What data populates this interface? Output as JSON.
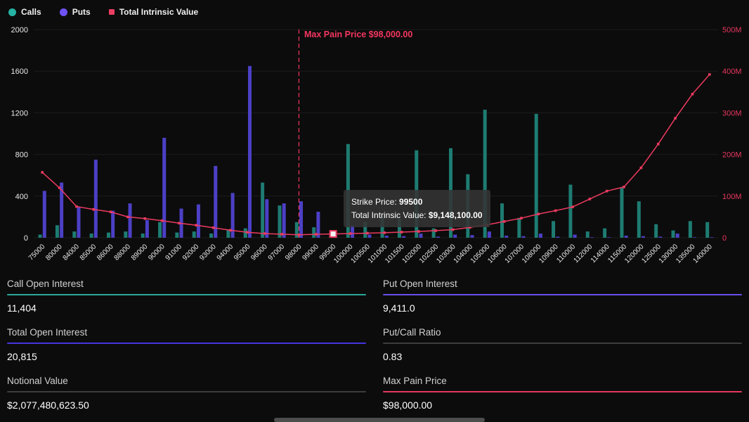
{
  "legend": {
    "items": [
      {
        "label": "Calls",
        "color": "#26b3a4",
        "shape": "circle"
      },
      {
        "label": "Puts",
        "color": "#6f52f5",
        "shape": "circle"
      },
      {
        "label": "Total Intrinsic Value",
        "color": "#eb3d62",
        "shape": "square"
      }
    ]
  },
  "chart_data": {
    "type": "bar",
    "subtype": "grouped bars with overlaid line (dual axis)",
    "categories": [
      "75000",
      "80000",
      "84000",
      "85000",
      "86000",
      "88000",
      "89000",
      "90000",
      "91000",
      "92000",
      "93000",
      "94000",
      "95000",
      "96000",
      "97000",
      "98000",
      "99000",
      "99500",
      "100000",
      "100500",
      "101000",
      "101500",
      "102000",
      "102500",
      "103000",
      "104000",
      "105000",
      "106000",
      "107000",
      "108000",
      "109000",
      "110000",
      "112000",
      "114000",
      "115000",
      "120000",
      "125000",
      "130000",
      "135000",
      "140000"
    ],
    "series": [
      {
        "name": "Calls",
        "type": "bar",
        "axis": "left",
        "color": "#1e7c72",
        "values": [
          30,
          120,
          60,
          40,
          50,
          60,
          40,
          150,
          50,
          60,
          40,
          80,
          90,
          530,
          310,
          150,
          100,
          50,
          900,
          150,
          200,
          180,
          840,
          90,
          860,
          610,
          1230,
          330,
          190,
          1190,
          160,
          510,
          60,
          90,
          480,
          350,
          130,
          70,
          160,
          150
        ]
      },
      {
        "name": "Puts",
        "type": "bar",
        "axis": "left",
        "color": "#4c40c6",
        "values": [
          450,
          530,
          300,
          750,
          260,
          330,
          170,
          960,
          280,
          320,
          690,
          430,
          1650,
          370,
          330,
          350,
          250,
          40,
          120,
          30,
          20,
          15,
          40,
          10,
          30,
          25,
          60,
          20,
          15,
          40,
          10,
          30,
          5,
          5,
          20,
          15,
          10,
          40,
          5,
          5
        ]
      },
      {
        "name": "Total Intrinsic Value",
        "type": "line",
        "axis": "right",
        "color": "#ec3a5f",
        "values_millions": [
          157,
          120,
          75,
          68,
          62,
          50,
          46,
          41,
          35,
          30,
          24,
          18,
          13,
          10,
          8.5,
          7.2,
          8.3,
          9.148,
          10,
          11,
          12,
          13.5,
          15,
          17,
          19.5,
          25,
          31,
          39,
          47,
          57,
          65,
          74,
          93,
          112,
          122,
          168,
          225,
          287,
          345,
          392
        ]
      }
    ],
    "left_axis": {
      "min": 0,
      "max": 2000,
      "ticks": [
        0,
        400,
        800,
        1200,
        1600,
        2000
      ],
      "label_color": "#e8e8e8"
    },
    "right_axis": {
      "min": 0,
      "max": 500,
      "tick_labels": [
        "0",
        "100M",
        "200M",
        "300M",
        "400M",
        "500M"
      ],
      "label_color": "#e8365f"
    },
    "max_pain": {
      "strike": "98000",
      "label": "Max Pain Price $98,000.00",
      "color": "#f4365f"
    },
    "tooltip": {
      "strike_label": "Strike Price: ",
      "strike_value": "99500",
      "tiv_label": "Total Intrinsic Value: ",
      "tiv_value": "$9,148,100.00",
      "highlight_strike": "99500"
    }
  },
  "stats": {
    "cells": [
      {
        "label": "Call Open Interest",
        "value": "11,404",
        "underline": "#2aa79b"
      },
      {
        "label": "Put Open Interest",
        "value": "9,411.0",
        "underline": "#6a4fe8"
      },
      {
        "label": "Total Open Interest",
        "value": "20,815",
        "underline": "#4334e0"
      },
      {
        "label": "Put/Call Ratio",
        "value": "0.83",
        "underline": "#3d3d3d"
      },
      {
        "label": "Notional Value",
        "value": "$2,077,480,623.50",
        "underline": "#3d3d3d"
      },
      {
        "label": "Max Pain Price",
        "value": "$98,000.00",
        "underline": "#e8365f"
      }
    ]
  }
}
